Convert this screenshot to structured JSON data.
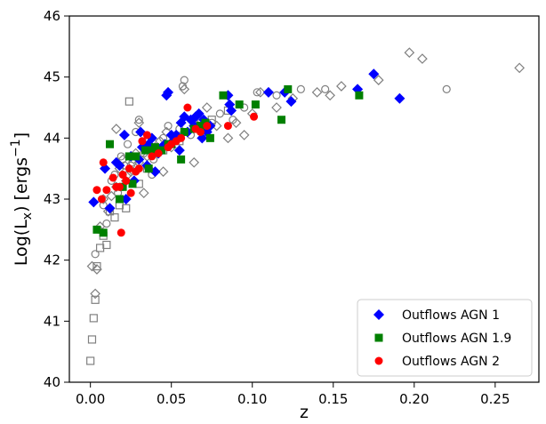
{
  "chart_data": {
    "type": "scatter",
    "title": "",
    "xlabel": "z",
    "ylabel_main": "Log(L",
    "ylabel_sub": "x",
    "ylabel_units": ") [ergs",
    "ylabel_sup": "−1",
    "ylabel_end": "]",
    "xlim": [
      -0.013,
      0.277
    ],
    "ylim": [
      40,
      46
    ],
    "xticks": [
      0.0,
      0.05,
      0.1,
      0.15,
      0.2,
      0.25
    ],
    "xtick_labels": [
      "0.00",
      "0.05",
      "0.10",
      "0.15",
      "0.20",
      "0.25"
    ],
    "yticks": [
      40,
      41,
      42,
      43,
      44,
      45,
      46
    ],
    "ytick_labels": [
      "40",
      "41",
      "42",
      "43",
      "44",
      "45",
      "46"
    ],
    "grid": false,
    "legend_position": "lower-right",
    "legend": [
      "Outflows AGN 1",
      "Outflows AGN 1.9",
      "Outflows AGN 2"
    ],
    "colors": {
      "agn1": "#0000ff",
      "agn19": "#008000",
      "agn2": "#ff0000",
      "parent": "#808080"
    },
    "series": [
      {
        "name": "Outflows AGN 1",
        "marker": "diamond",
        "color": "#0000ff",
        "x": [
          0.002,
          0.009,
          0.012,
          0.016,
          0.018,
          0.021,
          0.022,
          0.025,
          0.027,
          0.03,
          0.031,
          0.032,
          0.035,
          0.036,
          0.038,
          0.04,
          0.042,
          0.044,
          0.046,
          0.047,
          0.048,
          0.05,
          0.051,
          0.053,
          0.055,
          0.056,
          0.058,
          0.06,
          0.062,
          0.064,
          0.065,
          0.067,
          0.069,
          0.07,
          0.072,
          0.074,
          0.085,
          0.086,
          0.087,
          0.11,
          0.12,
          0.124,
          0.165,
          0.175,
          0.191
        ],
        "y": [
          42.95,
          43.5,
          42.85,
          43.6,
          43.55,
          44.05,
          43.0,
          43.7,
          43.3,
          43.65,
          44.1,
          43.85,
          43.55,
          43.9,
          44.0,
          43.45,
          43.75,
          43.85,
          43.9,
          44.7,
          44.75,
          44.05,
          43.95,
          44.05,
          43.8,
          44.25,
          44.35,
          44.1,
          44.3,
          44.2,
          44.35,
          44.4,
          44.0,
          44.3,
          44.1,
          44.2,
          44.7,
          44.55,
          44.45,
          44.75,
          44.75,
          44.6,
          44.8,
          45.05,
          44.65
        ]
      },
      {
        "name": "Outflows AGN 1.9",
        "marker": "square",
        "color": "#008000",
        "x": [
          0.004,
          0.008,
          0.012,
          0.018,
          0.02,
          0.024,
          0.026,
          0.028,
          0.034,
          0.036,
          0.038,
          0.04,
          0.044,
          0.048,
          0.05,
          0.056,
          0.058,
          0.064,
          0.068,
          0.071,
          0.074,
          0.082,
          0.092,
          0.102,
          0.118,
          0.122,
          0.166
        ],
        "y": [
          42.5,
          42.45,
          43.9,
          43.0,
          43.2,
          43.7,
          43.25,
          43.7,
          43.8,
          43.5,
          43.8,
          43.85,
          43.8,
          43.9,
          43.9,
          43.65,
          44.1,
          44.15,
          44.2,
          44.25,
          44.0,
          44.7,
          44.55,
          44.55,
          44.3,
          44.8,
          44.7
        ]
      },
      {
        "name": "Outflows AGN 2",
        "marker": "circle",
        "color": "#ff0000",
        "x": [
          0.004,
          0.007,
          0.008,
          0.01,
          0.014,
          0.016,
          0.018,
          0.019,
          0.02,
          0.022,
          0.024,
          0.025,
          0.028,
          0.03,
          0.032,
          0.035,
          0.038,
          0.042,
          0.048,
          0.05,
          0.053,
          0.056,
          0.06,
          0.065,
          0.068,
          0.072,
          0.085,
          0.101
        ],
        "y": [
          43.15,
          43.0,
          43.6,
          43.15,
          43.35,
          43.2,
          43.2,
          42.45,
          43.4,
          43.3,
          43.5,
          43.1,
          43.45,
          43.5,
          43.95,
          44.05,
          43.7,
          43.75,
          43.85,
          43.9,
          43.95,
          44.0,
          44.5,
          44.15,
          44.1,
          44.2,
          44.2,
          44.35
        ]
      },
      {
        "name": "",
        "marker": "open-square",
        "color": "#808080",
        "x": [
          0.0,
          0.001,
          0.002,
          0.003,
          0.004,
          0.006,
          0.008,
          0.01,
          0.012,
          0.015,
          0.018,
          0.022,
          0.024,
          0.03,
          0.035,
          0.045,
          0.055,
          0.065,
          0.075,
          0.085
        ],
        "y": [
          40.35,
          40.7,
          41.05,
          41.35,
          41.9,
          42.2,
          42.4,
          42.25,
          42.8,
          42.7,
          42.9,
          42.85,
          44.6,
          43.25,
          43.5,
          43.8,
          43.95,
          44.2,
          44.3,
          44.45
        ]
      },
      {
        "name": "",
        "marker": "open-diamond",
        "color": "#808080",
        "x": [
          0.001,
          0.003,
          0.004,
          0.006,
          0.008,
          0.011,
          0.013,
          0.016,
          0.018,
          0.02,
          0.022,
          0.025,
          0.028,
          0.03,
          0.033,
          0.036,
          0.04,
          0.043,
          0.047,
          0.05,
          0.053,
          0.056,
          0.06,
          0.064,
          0.068,
          0.072,
          0.078,
          0.085,
          0.09,
          0.095,
          0.1,
          0.105,
          0.115,
          0.125,
          0.14,
          0.148,
          0.155,
          0.165,
          0.178,
          0.197,
          0.205,
          0.265,
          0.03,
          0.045,
          0.058,
          0.065,
          0.016,
          0.023,
          0.035
        ],
        "y": [
          41.9,
          41.45,
          41.85,
          42.55,
          43.0,
          42.8,
          43.05,
          44.15,
          43.5,
          43.65,
          43.3,
          43.45,
          43.75,
          43.6,
          43.1,
          43.5,
          43.85,
          43.95,
          44.1,
          43.85,
          44.0,
          44.25,
          44.1,
          43.6,
          44.3,
          44.5,
          44.2,
          44.0,
          44.25,
          44.05,
          44.4,
          44.75,
          44.5,
          44.65,
          44.75,
          44.7,
          44.85,
          44.8,
          44.95,
          45.4,
          45.3,
          45.15,
          44.25,
          43.45,
          44.8,
          44.2,
          43.2,
          43.4,
          43.7
        ]
      },
      {
        "name": "",
        "marker": "open-circle",
        "color": "#808080",
        "x": [
          0.003,
          0.005,
          0.008,
          0.01,
          0.013,
          0.015,
          0.017,
          0.019,
          0.021,
          0.023,
          0.026,
          0.028,
          0.03,
          0.033,
          0.036,
          0.039,
          0.042,
          0.045,
          0.048,
          0.052,
          0.055,
          0.058,
          0.062,
          0.066,
          0.07,
          0.075,
          0.08,
          0.088,
          0.095,
          0.103,
          0.115,
          0.13,
          0.145,
          0.22,
          0.057,
          0.025,
          0.038,
          0.02
        ],
        "y": [
          42.1,
          42.5,
          42.9,
          42.6,
          43.3,
          43.4,
          43.1,
          43.7,
          43.55,
          43.9,
          43.6,
          44.1,
          44.3,
          43.75,
          43.95,
          43.65,
          43.8,
          44.0,
          44.2,
          43.95,
          44.15,
          44.95,
          44.05,
          44.35,
          44.1,
          44.25,
          44.4,
          44.3,
          44.5,
          44.75,
          44.7,
          44.8,
          44.8,
          44.8,
          44.85,
          43.55,
          43.4,
          43.2
        ]
      }
    ]
  }
}
